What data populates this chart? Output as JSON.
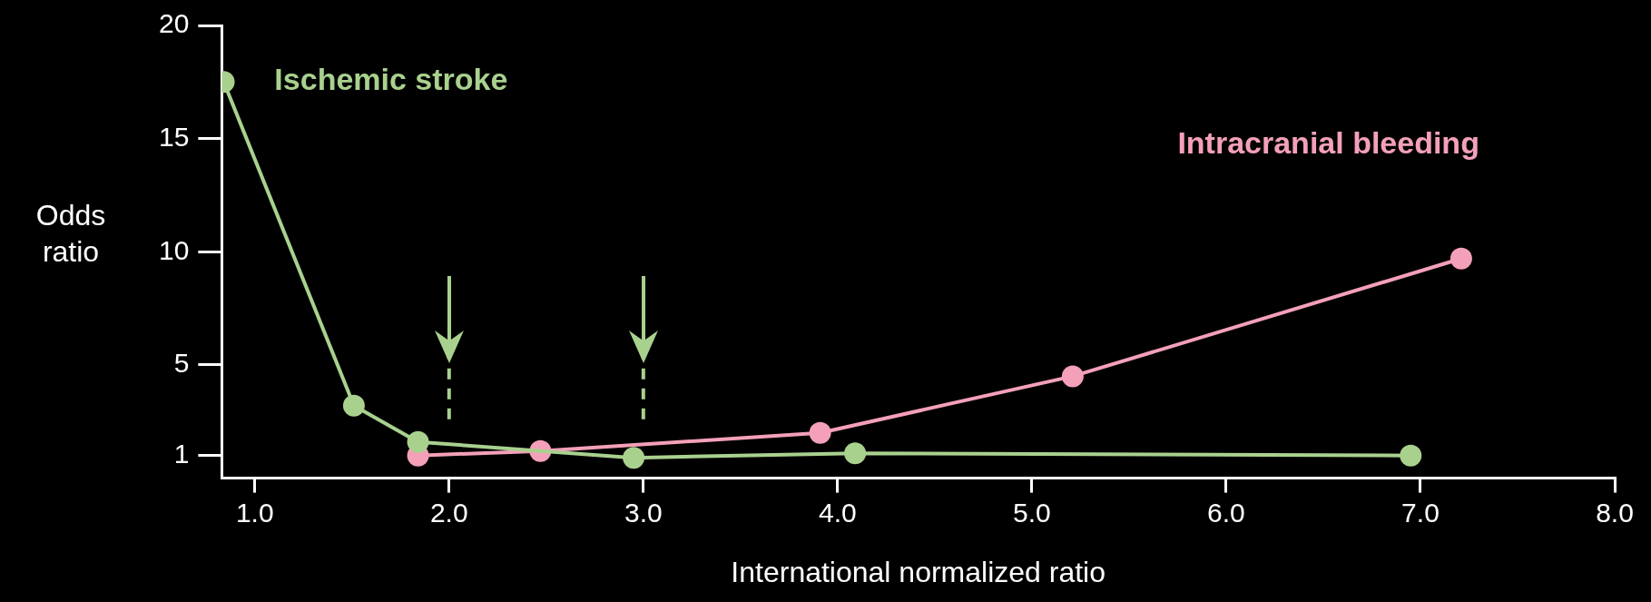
{
  "chart_data": {
    "type": "line",
    "xlabel": "International normalized ratio",
    "ylabel": "Odds ratio",
    "xlim": [
      0.83,
      8.0
    ],
    "xticks": [
      {
        "value": 1,
        "label": "1.0"
      },
      {
        "value": 2,
        "label": "2.0"
      },
      {
        "value": 3,
        "label": "3.0"
      },
      {
        "value": 4,
        "label": "4.0"
      },
      {
        "value": 5,
        "label": "5.0"
      },
      {
        "value": 6,
        "label": "6.0"
      },
      {
        "value": 7,
        "label": "7.0"
      },
      {
        "value": 8,
        "label": "8.0"
      }
    ],
    "ylim": [
      0,
      20
    ],
    "yticks": [
      1,
      5,
      10,
      15,
      20
    ],
    "grid": false,
    "legend": false,
    "marker": "circle",
    "line_style": "solid",
    "series": [
      {
        "name": "Ischemic stroke",
        "color": "#a9d18e",
        "x": [
          0.84,
          1.51,
          1.84,
          2.95,
          4.09,
          6.95
        ],
        "values": [
          17.5,
          3.2,
          1.6,
          0.9,
          1.1,
          1.0
        ]
      },
      {
        "name": "Intracranial bleeding",
        "color": "#f4a0b9",
        "x": [
          1.84,
          2.47,
          3.91,
          5.21,
          7.21
        ],
        "values": [
          1.0,
          1.2,
          2.0,
          4.5,
          9.7
        ]
      }
    ],
    "ref_lines": [
      {
        "axis": "x",
        "value": 2,
        "color": "#a9d18e",
        "line_style": "dashed"
      },
      {
        "axis": "x",
        "value": 3,
        "color": "#a9d18e",
        "line_style": "dashed"
      }
    ]
  }
}
